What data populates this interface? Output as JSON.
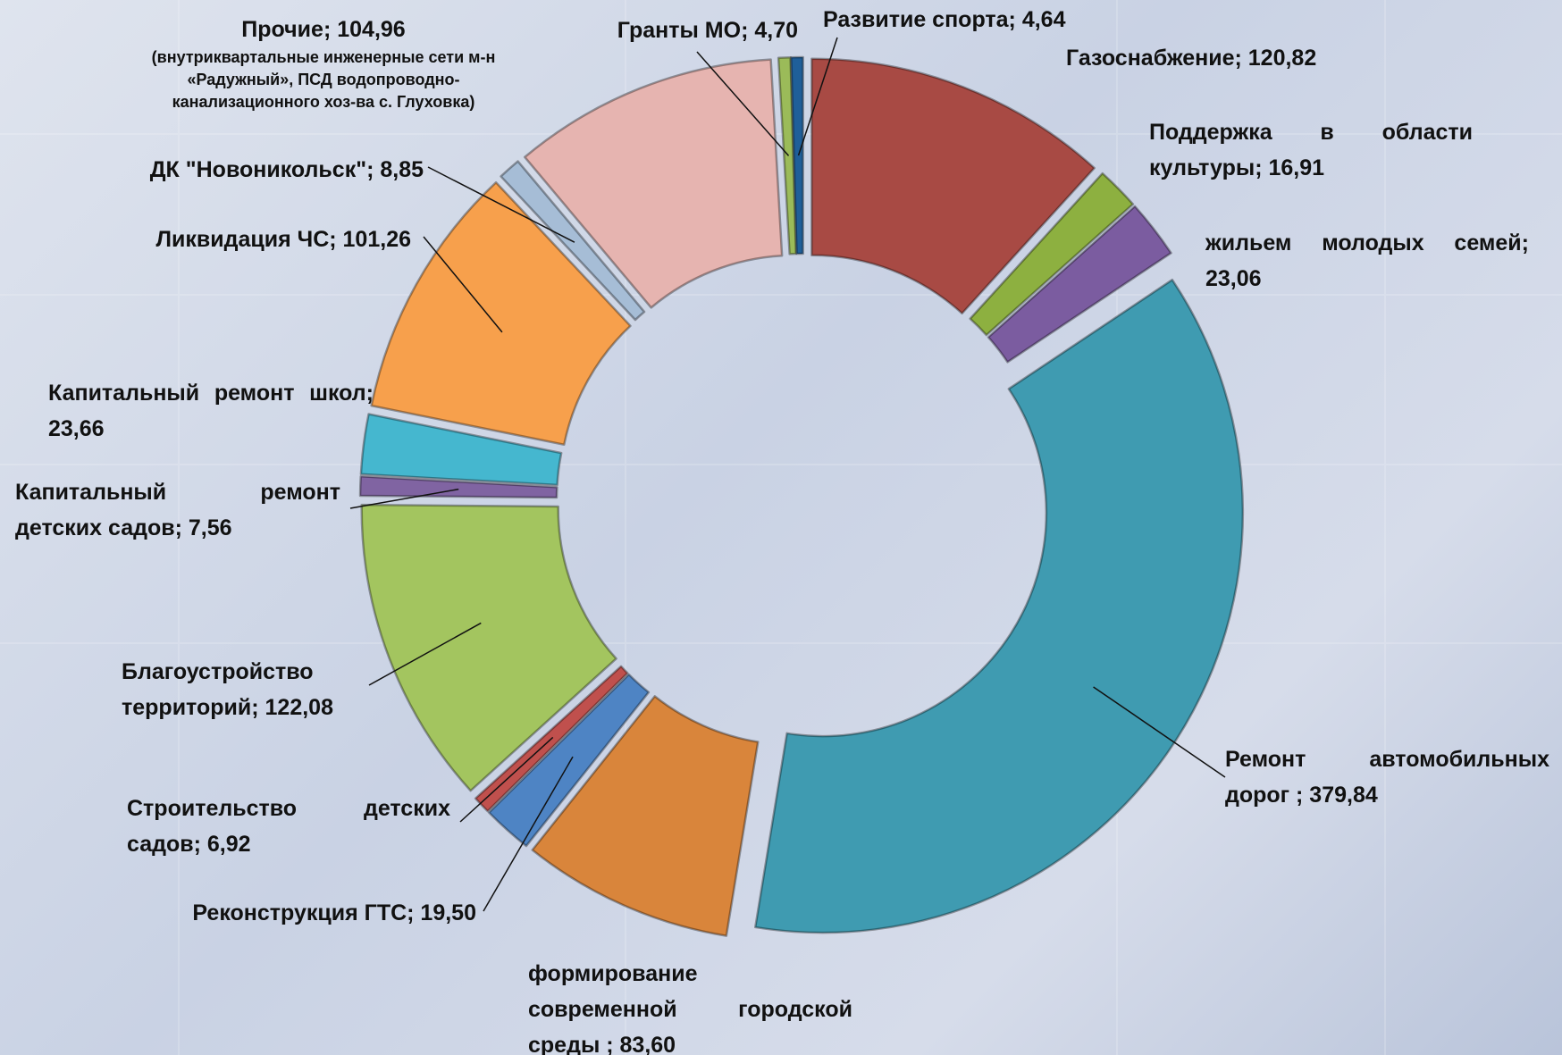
{
  "chart_data": {
    "type": "donut",
    "categories": [
      "Газоснабжение; 120,82",
      "Поддержка в области культуры; 16,91",
      "жильем молодых семей; 23,06",
      "Ремонт автомобильных дорог ; 379,84",
      "формирование современной городской среды ; 83,60",
      "Реконструкция ГТС; 19,50",
      "Строительство детских садов; 6,92",
      "Благоустройство территорий; 122,08",
      "Капитальный ремонт детских садов; 7,56",
      "Капитальный ремонт школ; 23,66",
      "Ликвидация ЧС; 101,26",
      "ДК \"Новоникольск\"; 8,85",
      "Прочие; 104,96",
      "Гранты МО; 4,70",
      "Развитие спорта; 4,64"
    ],
    "values": [
      120.82,
      16.91,
      23.06,
      379.84,
      83.6,
      19.5,
      6.92,
      122.08,
      7.56,
      23.66,
      101.26,
      8.85,
      104.96,
      4.7,
      4.64
    ],
    "colors": [
      "#a84a44",
      "#8db040",
      "#7b5ca0",
      "#3f9bb1",
      "#d9853b",
      "#4e84c4",
      "#c0504d",
      "#a3c55f",
      "#8064a2",
      "#45b7cf",
      "#f7a04c",
      "#a6bdd6",
      "#e6b4b0",
      "#9bbb59",
      "#1f5f99"
    ],
    "note": "(внутриквартальные инженерные сети м-н «Радужный», ПСД водопроводно-канализационного хоз-ва с. Глуховка)"
  }
}
